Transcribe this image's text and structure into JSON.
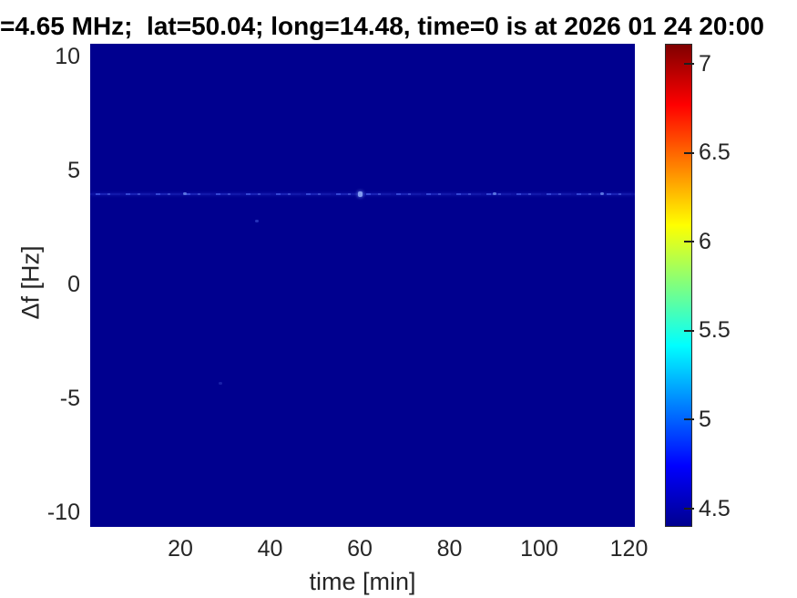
{
  "chart_data": {
    "type": "heatmap",
    "title": "=4.65 MHz;  lat=50.04; long=14.48, time=0 is at 2026 01 24 20:00",
    "xlabel": "time [min]",
    "ylabel": "Δf [Hz]",
    "xlim": [
      0,
      121
    ],
    "ylim": [
      -10.6,
      10.6
    ],
    "x_ticks": [
      20,
      40,
      60,
      80,
      100,
      120
    ],
    "y_ticks": [
      10,
      5,
      0,
      -5,
      -10
    ],
    "grid": false,
    "colormap": "jet",
    "clim": [
      4.4,
      7.11
    ],
    "colorbar_ticks": [
      4.5,
      5,
      5.5,
      6,
      6.5,
      7
    ],
    "background_value": 4.4,
    "features": [
      {
        "kind": "horizontal-line",
        "delta_f_hz": 4,
        "time_min": [
          0,
          121
        ],
        "value_range": [
          4.5,
          5.2
        ],
        "description": "faint speckled enhancement line across all times at +4 Hz"
      },
      {
        "kind": "point",
        "time_min": 60,
        "delta_f_hz": 4,
        "value": 5.3,
        "description": "brightest blip on the 4 Hz line"
      },
      {
        "kind": "point",
        "time_min": 21,
        "delta_f_hz": 4,
        "value": 5.0
      },
      {
        "kind": "point",
        "time_min": 90,
        "delta_f_hz": 4,
        "value": 4.95
      },
      {
        "kind": "point",
        "time_min": 114,
        "delta_f_hz": 4,
        "value": 4.9
      },
      {
        "kind": "point",
        "time_min": 37,
        "delta_f_hz": 2.8,
        "value": 4.7,
        "description": "isolated faint dot below the line"
      },
      {
        "kind": "point",
        "time_min": 29,
        "delta_f_hz": -4.3,
        "value": 4.6,
        "description": "very faint dot in lower half"
      }
    ],
    "colors": {
      "background_navy": "#00008F",
      "jet_stops": [
        "#00008F",
        "#0000FF",
        "#00FFFF",
        "#FFFF00",
        "#FF0000",
        "#7F0000"
      ],
      "tick_text": "#262626",
      "title_text": "#000000"
    }
  }
}
